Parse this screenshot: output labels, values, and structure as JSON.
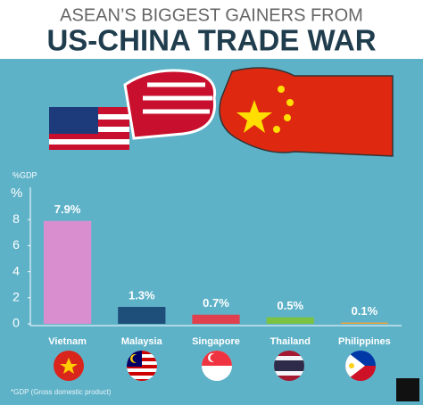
{
  "chart_data": {
    "type": "bar",
    "title": "ASEAN’S BIGGEST GAINERS FROM",
    "subtitle": "US-CHINA TRADE WAR",
    "ylabel": "%GDP",
    "y_unit_label": "%",
    "footnote": "*GDP (Gross domestic product)",
    "categories": [
      "Vietnam",
      "Malaysia",
      "Singapore",
      "Thailand",
      "Philippines"
    ],
    "values": [
      7.9,
      1.3,
      0.7,
      0.5,
      0.1
    ],
    "value_labels": [
      "7.9%",
      "1.3%",
      "0.7%",
      "0.5%",
      "0.1%"
    ],
    "colors": [
      "#d98fcf",
      "#1d4f7a",
      "#e0404e",
      "#7cc243",
      "#f0a43a"
    ],
    "ylim": [
      0,
      10
    ],
    "yticks": [
      0,
      2,
      4,
      6,
      8
    ],
    "grid": false
  }
}
